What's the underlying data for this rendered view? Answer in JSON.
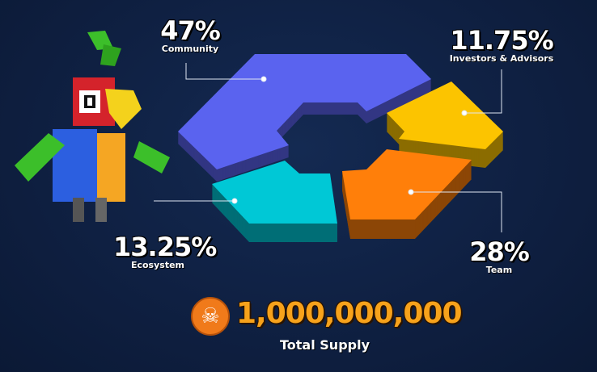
{
  "chart_data": {
    "type": "pie",
    "style": "3D exploded donut",
    "categories": [
      "Community",
      "Investors & Advisors",
      "Team",
      "Ecosystem"
    ],
    "values": [
      47,
      11.75,
      28,
      13.25
    ],
    "value_labels": [
      "47%",
      "11.75%",
      "28%",
      "13.25%"
    ],
    "colors": [
      "#5a63ef",
      "#fcc400",
      "#ff7f0a",
      "#00c8d6"
    ],
    "legend": "leader-line labels"
  },
  "total": {
    "value": "1,000,000,000",
    "label": "Total Supply",
    "icon": "skull-coin-icon"
  },
  "mascot": "voxel-parrot"
}
